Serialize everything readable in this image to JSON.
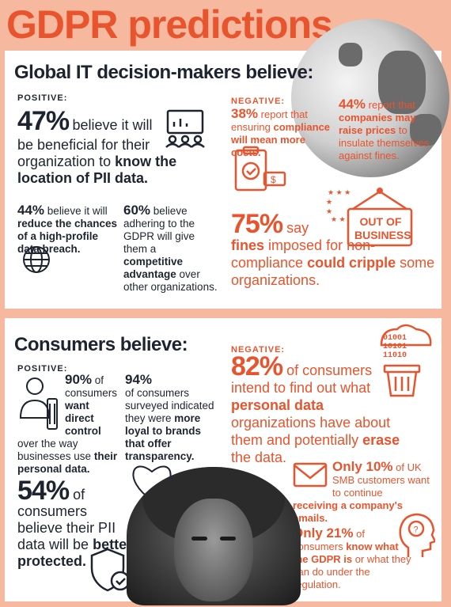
{
  "title": "GDPR predictions",
  "it_section": {
    "heading": "Global IT decision-makers believe:",
    "positive_label": "POSITIVE:",
    "negative_label": "NEGATIVE:",
    "stat1": {
      "pct": "47%",
      "pre": "believe it will",
      "mid": "be beneficial for their organization to",
      "bold": "know the location of PII data."
    },
    "stat2": {
      "pct": "44%",
      "pre": "believe it will",
      "bold": "reduce the chances of a high-profile data breach."
    },
    "stat3": {
      "pct": "60%",
      "pre": "believe adhering to the GDPR will give them a",
      "bold": "competitive advantage",
      "post": "over other organizations."
    },
    "stat4": {
      "pct": "38%",
      "pre": "report that ensuring",
      "bold": "compliance will mean more costs."
    },
    "stat5": {
      "pct": "44%",
      "pre": "report that",
      "bold": "companies may raise prices",
      "post": "to insulate themselves against fines."
    },
    "stat6": {
      "pct": "75%",
      "pre": "say",
      "bold1": "fines",
      "mid": "imposed for non-compliance",
      "bold2": "could cripple",
      "post": "some organizations."
    },
    "sign_text": "OUT OF BUSINESS"
  },
  "consumer_section": {
    "heading": "Consumers believe:",
    "positive_label": "POSITIVE:",
    "negative_label": "NEGATIVE:",
    "stat1": {
      "pct": "90%",
      "pre": "of consumers",
      "bold": "want direct control",
      "mid": "over the way businesses use",
      "bold2": "their personal data."
    },
    "stat2": {
      "pct": "94%",
      "pre": "of consumers surveyed indicated they were",
      "bold": "more loyal to brands that offer transparency."
    },
    "stat3": {
      "pct": "54%",
      "pre": "of consumers believe their PII data will be",
      "bold": "better protected."
    },
    "stat4": {
      "pct": "82%",
      "pre": "of consumers intend to find out what",
      "bold": "personal data",
      "mid": "organizations have about them and potentially",
      "bold2": "erase",
      "post": "the data."
    },
    "stat5": {
      "bold": "Only 10%",
      "pre": "of UK SMB customers want to continue",
      "bold2": "receiving a company's emails."
    },
    "stat6": {
      "bold": "Only 21%",
      "pre": "of consumers",
      "bold2": "know what the GDPR is",
      "post": "or what they can do under the regulation."
    },
    "binary1": "01001",
    "binary2": "10101",
    "binary3": "11010"
  },
  "colors": {
    "accent": "#e8542d",
    "navy": "#1d2430",
    "background": "#f6b89e"
  }
}
